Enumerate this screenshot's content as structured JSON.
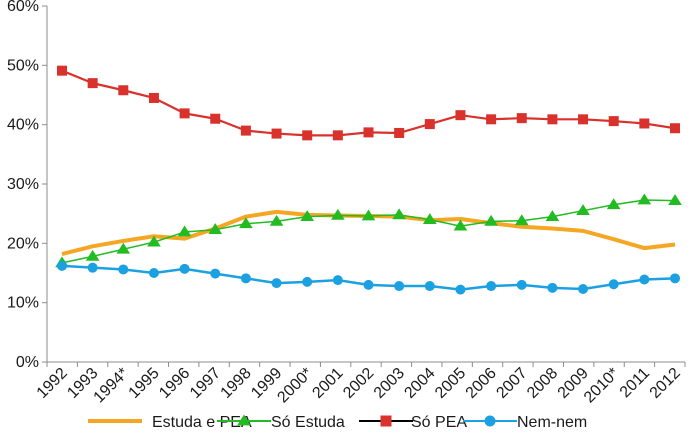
{
  "chart_data": {
    "type": "line",
    "title": "",
    "xlabel": "",
    "ylabel": "",
    "categories": [
      "1992",
      "1993",
      "1994*",
      "1995",
      "1996",
      "1997",
      "1998",
      "1999",
      "2000*",
      "2001",
      "2002",
      "2003",
      "2004",
      "2005",
      "2006",
      "2007",
      "2008",
      "2009",
      "2010*",
      "2011",
      "2012"
    ],
    "y_ticks": [
      "0%",
      "10%",
      "20%",
      "30%",
      "40%",
      "50%",
      "60%"
    ],
    "ylim": [
      0,
      60
    ],
    "grid": false,
    "legend": "bottom",
    "series": [
      {
        "name": "Estuda e PEA",
        "color": "#f5a623",
        "marker": "none",
        "values": [
          18.2,
          19.5,
          20.4,
          21.2,
          20.8,
          22.5,
          24.5,
          25.3,
          24.8,
          24.7,
          24.6,
          24.5,
          23.9,
          24.1,
          23.4,
          22.8,
          22.5,
          22.1,
          20.7,
          19.2,
          19.8
        ]
      },
      {
        "name": "Só Estuda",
        "color": "#22bb22",
        "marker": "triangle",
        "values": [
          16.7,
          17.8,
          19.0,
          20.2,
          21.9,
          22.3,
          23.3,
          23.7,
          24.5,
          24.7,
          24.6,
          24.8,
          24.0,
          22.9,
          23.7,
          23.8,
          24.5,
          25.5,
          26.5,
          27.3,
          27.2
        ]
      },
      {
        "name": "Só PEA",
        "color": "#d9322c",
        "marker": "square",
        "values": [
          49.1,
          47.0,
          45.8,
          44.5,
          41.9,
          41.0,
          39.0,
          38.5,
          38.2,
          38.2,
          38.7,
          38.6,
          40.1,
          41.6,
          40.9,
          41.1,
          40.9,
          40.9,
          40.6,
          40.2,
          39.4
        ]
      },
      {
        "name": "Nem-nem",
        "color": "#1ba1e2",
        "marker": "circle",
        "values": [
          16.2,
          15.9,
          15.6,
          15.0,
          15.7,
          14.9,
          14.1,
          13.3,
          13.5,
          13.8,
          13.0,
          12.8,
          12.8,
          12.2,
          12.8,
          13.0,
          12.5,
          12.3,
          13.1,
          13.9,
          14.1
        ]
      }
    ]
  }
}
